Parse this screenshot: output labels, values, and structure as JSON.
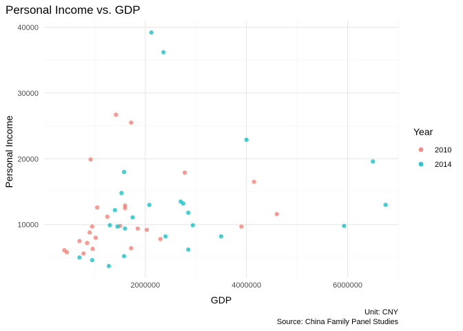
{
  "chart_data": {
    "type": "scatter",
    "title": "Personal Income vs. GDP",
    "xlabel": "GDP",
    "ylabel": "Personal Income",
    "xlim": [
      0,
      7000000
    ],
    "ylim": [
      2000,
      41000
    ],
    "x_ticks": [
      2000000,
      4000000,
      6000000
    ],
    "x_tick_labels": [
      "2000000",
      "4000000",
      "6000000"
    ],
    "y_ticks": [
      10000,
      20000,
      30000,
      40000
    ],
    "y_tick_labels": [
      "10000",
      "20000",
      "30000",
      "40000"
    ],
    "grid": true,
    "legend": {
      "title": "Year",
      "position": "right"
    },
    "caption": [
      "Unit: CNY",
      "Source: China Family Panel Studies"
    ],
    "series": [
      {
        "name": "2010",
        "color": "#f8766d",
        "points": [
          [
            400000,
            6100
          ],
          [
            450000,
            5800
          ],
          [
            700000,
            7500
          ],
          [
            780000,
            5600
          ],
          [
            850000,
            7200
          ],
          [
            900000,
            8800
          ],
          [
            920000,
            19900
          ],
          [
            950000,
            9700
          ],
          [
            960000,
            6300
          ],
          [
            1020000,
            8000
          ],
          [
            1050000,
            12600
          ],
          [
            1250000,
            11200
          ],
          [
            1420000,
            26700
          ],
          [
            1500000,
            9800
          ],
          [
            1600000,
            12900
          ],
          [
            1600000,
            12500
          ],
          [
            1720000,
            25500
          ],
          [
            1720000,
            6400
          ],
          [
            1850000,
            9400
          ],
          [
            2030000,
            9200
          ],
          [
            2300000,
            7800
          ],
          [
            2780000,
            17900
          ],
          [
            3900000,
            9700
          ],
          [
            4150000,
            16500
          ],
          [
            4600000,
            11600
          ]
        ]
      },
      {
        "name": "2014",
        "color": "#00bfc4",
        "points": [
          [
            700000,
            5000
          ],
          [
            950000,
            4600
          ],
          [
            1280000,
            3700
          ],
          [
            1300000,
            9900
          ],
          [
            1400000,
            12200
          ],
          [
            1450000,
            9700
          ],
          [
            1530000,
            14800
          ],
          [
            1580000,
            18000
          ],
          [
            1580000,
            5200
          ],
          [
            1600000,
            9400
          ],
          [
            1750000,
            11100
          ],
          [
            2080000,
            13000
          ],
          [
            2120000,
            39200
          ],
          [
            2360000,
            36200
          ],
          [
            2400000,
            8200
          ],
          [
            2700000,
            13500
          ],
          [
            2750000,
            13200
          ],
          [
            2850000,
            11800
          ],
          [
            2850000,
            6200
          ],
          [
            2940000,
            9900
          ],
          [
            3500000,
            8200
          ],
          [
            4000000,
            22900
          ],
          [
            5930000,
            9800
          ],
          [
            6500000,
            19600
          ],
          [
            6750000,
            13000
          ]
        ]
      }
    ]
  }
}
